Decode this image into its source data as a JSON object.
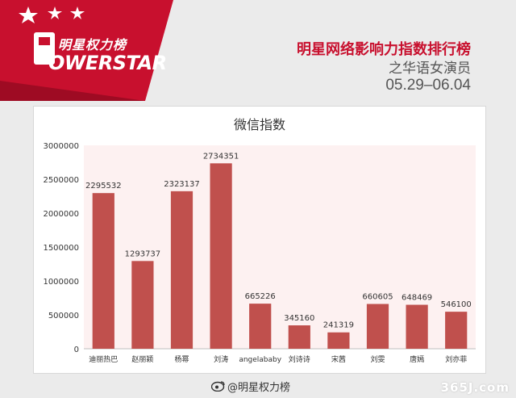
{
  "header": {
    "brand_cn": "明星权力榜",
    "brand_en": "OWERSTAR",
    "title": "明星网络影响力指数排行榜",
    "subtitle": "之华语女演员",
    "date_range": "05.29–06.04"
  },
  "colors": {
    "brand_red": "#c8102e",
    "bar": "#c0504d",
    "plot_bg": "#fdf1f1"
  },
  "chart_data": {
    "type": "bar",
    "title": "微信指数",
    "categories": [
      "迪丽热巴",
      "赵丽颖",
      "杨幂",
      "刘涛",
      "angelababy",
      "刘诗诗",
      "宋茜",
      "刘雯",
      "唐嫣",
      "刘亦菲"
    ],
    "values": [
      2295532,
      1293737,
      2323137,
      2734351,
      665226,
      345160,
      241319,
      660605,
      648469,
      546100
    ],
    "ylim": [
      0,
      3000000
    ],
    "yticks": [
      0,
      500000,
      1000000,
      1500000,
      2000000,
      2500000,
      3000000
    ],
    "xlabel": "",
    "ylabel": "",
    "grid": false,
    "legend": "none"
  },
  "footer": {
    "credit": "@明星权力榜",
    "watermark": "365J.com"
  }
}
